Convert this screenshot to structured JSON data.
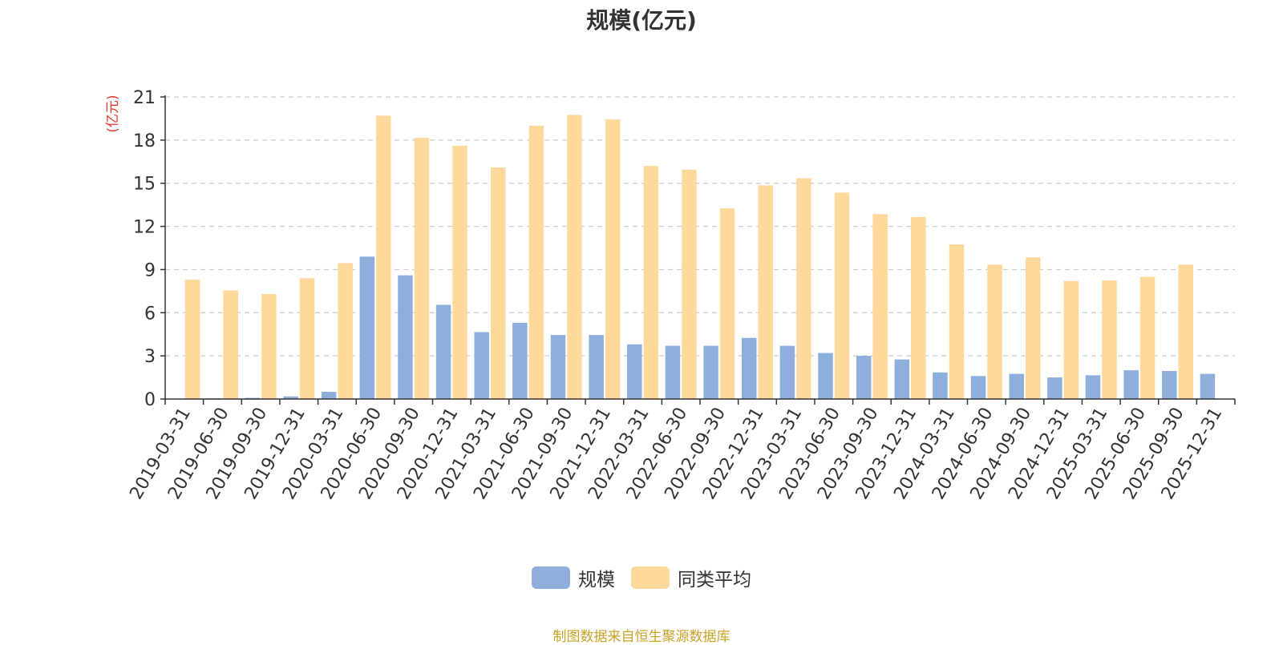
{
  "chart_data": {
    "type": "bar",
    "title": "规模(亿元)",
    "ylabel": "(亿元)",
    "xlabel": "",
    "ylim": [
      0,
      21
    ],
    "yticks": [
      0,
      3,
      6,
      9,
      12,
      15,
      18,
      21
    ],
    "grid": true,
    "legend_position": "bottom-center",
    "categories": [
      "2019-03-31",
      "2019-06-30",
      "2019-09-30",
      "2019-12-31",
      "2020-03-31",
      "2020-06-30",
      "2020-09-30",
      "2020-12-31",
      "2021-03-31",
      "2021-06-30",
      "2021-09-30",
      "2021-12-31",
      "2022-03-31",
      "2022-06-30",
      "2022-09-30",
      "2022-12-31",
      "2023-03-31",
      "2023-06-30",
      "2023-09-30",
      "2023-12-31",
      "2024-03-31",
      "2024-06-30",
      "2024-09-30",
      "2024-12-31",
      "2025-03-31",
      "2025-06-30",
      "2025-09-30",
      "2025-12-31"
    ],
    "series": [
      {
        "name": "规模",
        "color": "#8eaedc",
        "values": [
          0,
          0.05,
          0.08,
          0.18,
          0.5,
          9.9,
          8.6,
          6.55,
          4.65,
          5.3,
          4.45,
          4.45,
          3.8,
          3.7,
          3.7,
          4.25,
          3.7,
          3.2,
          3.0,
          2.75,
          1.85,
          1.6,
          1.75,
          1.5,
          1.65,
          2.0,
          1.95,
          1.75
        ]
      },
      {
        "name": "同类平均",
        "color": "#ffd99b",
        "values": [
          8.3,
          7.55,
          7.3,
          8.4,
          9.45,
          19.7,
          18.15,
          17.6,
          16.1,
          19.0,
          19.75,
          19.45,
          16.2,
          15.95,
          13.25,
          14.85,
          15.35,
          14.35,
          12.85,
          12.65,
          10.75,
          9.35,
          9.85,
          8.2,
          8.25,
          8.5,
          9.35,
          null
        ]
      }
    ]
  },
  "source_text": "制图数据来自恒生聚源数据库"
}
